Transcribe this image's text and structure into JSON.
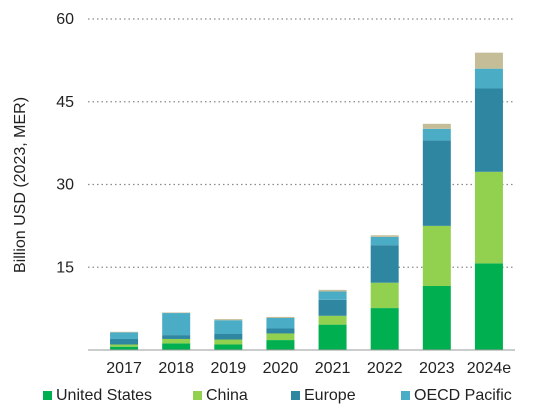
{
  "chart_data": {
    "type": "bar",
    "stacked": true,
    "title": "",
    "xlabel": "",
    "ylabel": "Billion USD (2023, MER)",
    "ylim": [
      0,
      60
    ],
    "yticks": [
      15,
      30,
      45,
      60
    ],
    "grid": "horizontal dotted",
    "legend_position": "bottom",
    "categories": [
      "2017",
      "2018",
      "2019",
      "2020",
      "2021",
      "2022",
      "2023",
      "2024e"
    ],
    "series": [
      {
        "name": "United States",
        "color": "#00b050",
        "values": [
          0.6,
          1.2,
          1.0,
          1.8,
          4.6,
          7.6,
          11.6,
          15.7
        ]
      },
      {
        "name": "China",
        "color": "#92d050",
        "values": [
          0.4,
          0.8,
          0.9,
          1.2,
          1.6,
          4.6,
          10.9,
          16.6
        ]
      },
      {
        "name": "Europe",
        "color": "#2e86a0",
        "values": [
          1.0,
          0.7,
          1.0,
          0.9,
          2.9,
          6.8,
          15.5,
          15.1
        ]
      },
      {
        "name": "OECD Pacific",
        "color": "#4bacc6",
        "values": [
          1.2,
          4.0,
          2.5,
          1.9,
          1.5,
          1.5,
          2.1,
          3.6
        ]
      },
      {
        "name": "",
        "color": "#c4bd97",
        "values": [
          0.1,
          0.1,
          0.2,
          0.2,
          0.3,
          0.3,
          0.9,
          2.9
        ]
      }
    ]
  }
}
